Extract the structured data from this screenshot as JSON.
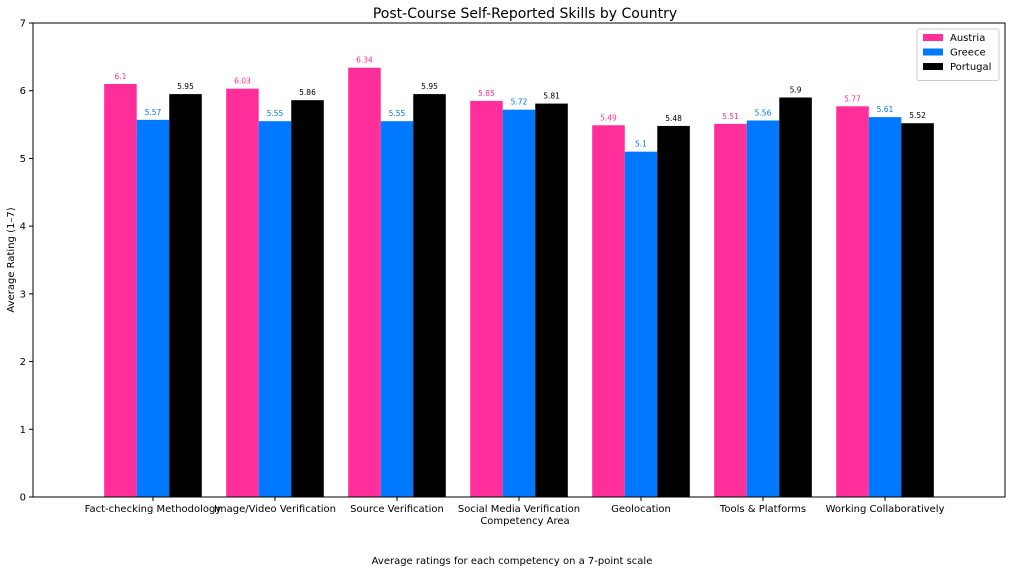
{
  "chart_data": {
    "type": "bar",
    "title": "Post-Course Self-Reported Skills by Country",
    "xlabel": "Competency Area",
    "ylabel": "Average Rating (1–7)",
    "ylim": [
      0,
      7
    ],
    "yticks": [
      0,
      1,
      2,
      3,
      4,
      5,
      6,
      7
    ],
    "grid": false,
    "legend_position": "top-right",
    "categories": [
      "Fact-checking Methodology",
      "Image/Video Verification",
      "Source Verification",
      "Social Media Verification",
      "Geolocation",
      "Tools & Platforms",
      "Working Collaboratively"
    ],
    "series": [
      {
        "name": "Austria",
        "color": "#ff2e9a",
        "values": [
          6.1,
          6.03,
          6.34,
          5.85,
          5.49,
          5.51,
          5.77
        ]
      },
      {
        "name": "Greece",
        "color": "#0078ff",
        "values": [
          5.57,
          5.55,
          5.55,
          5.72,
          5.1,
          5.56,
          5.61
        ]
      },
      {
        "name": "Portugal",
        "color": "#000000",
        "values": [
          5.95,
          5.86,
          5.95,
          5.81,
          5.48,
          5.9,
          5.52
        ]
      }
    ],
    "caption": "Average ratings for each competency on a 7-point scale"
  }
}
